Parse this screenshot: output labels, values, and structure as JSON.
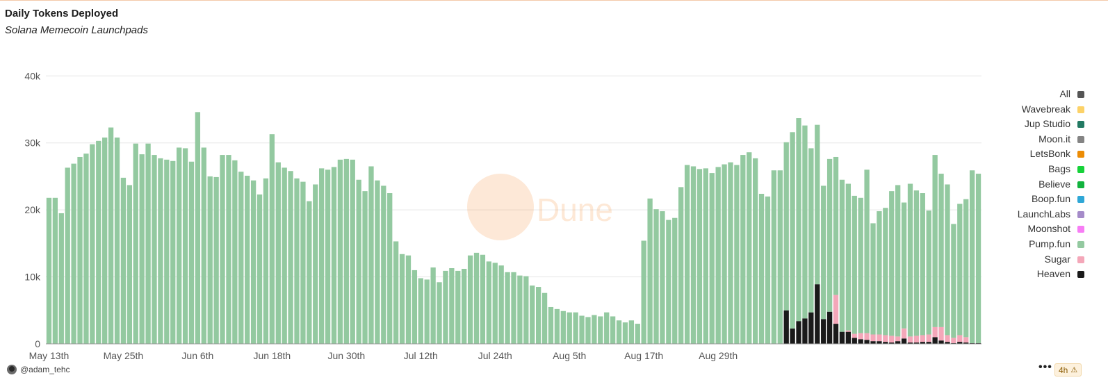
{
  "header": {
    "title": "Daily Tokens Deployed",
    "subtitle": "Solana Memecoin Launchpads"
  },
  "watermark": "Dune",
  "footer": {
    "user": "@adam_tehc",
    "more_label": "•••",
    "refresh_label": "4h",
    "refresh_icon": "warning-icon"
  },
  "colors": {
    "Heaven": "#1a1a1a",
    "Sugar": "#f4a7b9",
    "Pump.fun": "#93c9a0",
    "Moonshot": "#f77df5",
    "LaunchLabs": "#a58bc9",
    "Boop.fun": "#2fa7d6",
    "Believe": "#12b33e",
    "Bags": "#16d239",
    "LetsBonk": "#ec8c05",
    "Moon.it": "#848484",
    "Jup Studio": "#237a63",
    "Wavebreak": "#fcd268",
    "All": "#555555"
  },
  "chart_data": {
    "type": "bar",
    "stacked": true,
    "title": "Daily Tokens Deployed",
    "subtitle": "Solana Memecoin Launchpads",
    "xlabel": "",
    "ylabel": "",
    "ylim": [
      0,
      42000
    ],
    "y_ticks": [
      0,
      10000,
      20000,
      30000,
      40000
    ],
    "y_tick_labels": [
      "0",
      "10k",
      "20k",
      "30k",
      "40k"
    ],
    "x_tick_labels": [
      {
        "date": "2025-05-13",
        "label": "May 13th"
      },
      {
        "date": "2025-05-25",
        "label": "May 25th"
      },
      {
        "date": "2025-06-06",
        "label": "Jun 6th"
      },
      {
        "date": "2025-06-18",
        "label": "Jun 18th"
      },
      {
        "date": "2025-06-30",
        "label": "Jun 30th"
      },
      {
        "date": "2025-07-12",
        "label": "Jul 12th"
      },
      {
        "date": "2025-07-24",
        "label": "Jul 24th"
      },
      {
        "date": "2025-08-05",
        "label": "Aug 5th"
      },
      {
        "date": "2025-08-17",
        "label": "Aug 17th"
      },
      {
        "date": "2025-08-29",
        "label": "Aug 29th"
      }
    ],
    "grid": true,
    "legend_position": "right",
    "legend": [
      "All",
      "Wavebreak",
      "Jup Studio",
      "Moon.it",
      "LetsBonk",
      "Bags",
      "Believe",
      "Boop.fun",
      "LaunchLabs",
      "Moonshot",
      "Pump.fun",
      "Sugar",
      "Heaven"
    ],
    "stack_order": [
      "Heaven",
      "Sugar",
      "Pump.fun",
      "Moonshot",
      "LaunchLabs",
      "Boop.fun",
      "Believe",
      "Bags",
      "LetsBonk",
      "Moon.it",
      "Jup Studio",
      "Wavebreak"
    ],
    "start_date": "2025-05-13",
    "series": [
      {
        "name": "Heaven",
        "values": [
          0,
          0,
          0,
          0,
          0,
          0,
          0,
          0,
          0,
          0,
          0,
          0,
          0,
          0,
          0,
          0,
          0,
          0,
          0,
          0,
          0,
          0,
          0,
          0,
          0,
          0,
          0,
          0,
          0,
          0,
          0,
          0,
          0,
          0,
          0,
          0,
          0,
          0,
          0,
          0,
          0,
          0,
          0,
          0,
          0,
          0,
          0,
          0,
          0,
          0,
          0,
          0,
          0,
          0,
          0,
          0,
          0,
          0,
          0,
          0,
          0,
          0,
          0,
          0,
          0,
          0,
          0,
          0,
          0,
          0,
          0,
          0,
          0,
          0,
          0,
          0,
          0,
          0,
          0,
          0,
          0,
          0,
          0,
          0,
          0,
          0,
          0,
          0,
          0,
          0,
          0,
          0,
          0,
          0,
          0,
          0,
          0,
          0,
          0,
          0,
          0,
          0,
          0,
          0,
          0,
          0,
          0,
          0,
          0,
          0,
          0,
          0,
          0,
          0,
          0,
          0,
          0,
          0,
          0,
          5000,
          2300,
          3400,
          3800,
          4700,
          8900,
          3700,
          4800,
          3000,
          1800,
          1800,
          900,
          700,
          600,
          400,
          400,
          300,
          200,
          400,
          800,
          200,
          200,
          300,
          300,
          1000,
          500,
          300,
          100,
          300,
          200,
          100,
          100,
          100,
          100,
          100,
          100,
          100,
          100,
          100,
          100,
          100,
          100,
          100,
          100,
          100,
          100,
          100,
          100,
          100,
          100,
          100,
          100,
          100,
          100,
          100,
          100,
          100,
          100,
          100,
          100,
          100,
          100,
          100,
          100,
          100,
          100,
          100,
          100,
          100,
          100,
          100,
          100,
          100,
          100,
          100,
          100,
          100,
          100,
          100,
          100,
          100,
          100,
          100,
          100
        ]
      },
      {
        "name": "Sugar",
        "values": [
          0,
          0,
          0,
          0,
          0,
          0,
          0,
          0,
          0,
          0,
          0,
          0,
          0,
          0,
          0,
          0,
          0,
          0,
          0,
          0,
          0,
          0,
          0,
          0,
          0,
          0,
          0,
          0,
          0,
          0,
          0,
          0,
          0,
          0,
          0,
          0,
          0,
          0,
          0,
          0,
          0,
          0,
          0,
          0,
          0,
          0,
          0,
          0,
          0,
          0,
          0,
          0,
          0,
          0,
          0,
          0,
          0,
          0,
          0,
          0,
          0,
          0,
          0,
          0,
          0,
          0,
          0,
          0,
          0,
          0,
          0,
          0,
          0,
          0,
          0,
          0,
          0,
          0,
          0,
          0,
          0,
          0,
          0,
          0,
          0,
          0,
          0,
          0,
          0,
          0,
          0,
          0,
          0,
          0,
          0,
          0,
          0,
          0,
          0,
          0,
          0,
          0,
          0,
          0,
          0,
          0,
          0,
          0,
          0,
          0,
          0,
          0,
          0,
          0,
          0,
          0,
          0,
          0,
          0,
          0,
          0,
          0,
          0,
          0,
          0,
          0,
          0,
          4300,
          0,
          200,
          600,
          900,
          1000,
          1000,
          1000,
          1000,
          1000,
          700,
          1500,
          900,
          1000,
          1000,
          1100,
          1500,
          2000,
          1000,
          800,
          1000,
          800,
          0,
          0,
          0,
          0,
          0,
          0,
          0,
          0,
          0,
          0,
          0,
          0,
          0,
          0,
          0,
          0,
          0,
          0,
          0,
          0,
          0,
          0,
          0,
          0,
          0,
          0,
          0,
          0,
          0,
          0,
          0,
          0,
          0,
          0,
          0,
          0,
          0,
          0,
          0,
          0,
          0,
          0,
          0,
          0,
          0,
          0,
          0,
          0,
          0,
          0,
          0,
          0,
          0,
          0,
          0,
          0,
          0,
          0,
          0,
          0,
          0,
          0,
          0,
          0
        ]
      },
      {
        "name": "Pump.fun",
        "values": [
          21800,
          21800,
          19500,
          26300,
          26900,
          27900,
          28400,
          29800,
          30300,
          30800,
          32300,
          30800,
          24800,
          23700,
          29900,
          28300,
          29900,
          28200,
          27700,
          27500,
          27300,
          29300,
          29200,
          27200,
          34600,
          29300,
          25000,
          24900,
          28200,
          28200,
          27400,
          25700,
          25100,
          24400,
          22300,
          24700,
          31300,
          27100,
          26300,
          25800,
          24700,
          24200,
          21300,
          23800,
          26200,
          26000,
          26400,
          27500,
          27600,
          27500,
          24500,
          22800,
          26500,
          24400,
          23600,
          22500,
          15300,
          13400,
          13200,
          11000,
          9800,
          9600,
          11400,
          9200,
          10900,
          11300,
          10900,
          11200,
          13200,
          13600,
          13300,
          12300,
          12100,
          11700,
          10700,
          10700,
          10200,
          10100,
          8700,
          8500,
          7600,
          5500,
          5200,
          4900,
          4700,
          4700,
          4200,
          4000,
          4300,
          4100,
          4700,
          4100,
          3500,
          3200,
          3500,
          3000,
          15400,
          21700,
          20100,
          19800,
          18500,
          18800,
          23400,
          26700,
          26500,
          26100,
          26200,
          25500,
          26400,
          26800,
          27100,
          26700,
          28200,
          28600,
          27700,
          22400,
          22000,
          25900,
          25900,
          25100,
          29300,
          30300,
          28800,
          24500,
          23800,
          19900,
          22800,
          20600,
          22700,
          21900,
          20600,
          20200,
          24400,
          16600,
          18400,
          19000,
          21600,
          22600,
          18800,
          22800,
          21700,
          21200,
          18500,
          25700,
          22900,
          22500,
          17000,
          19600,
          20600,
          25800,
          25300
        ]
      },
      {
        "name": "Moonshot",
        "values": [
          0,
          0,
          0,
          0,
          0,
          0,
          0,
          0,
          0,
          0,
          0,
          0,
          0,
          0,
          0,
          0,
          0,
          0,
          0,
          0,
          0,
          0,
          0,
          0,
          0,
          0,
          0,
          0,
          0,
          0,
          0,
          0,
          0,
          0,
          0,
          0,
          0,
          0,
          0,
          0,
          0,
          0,
          0,
          0,
          0,
          0,
          0,
          0,
          0,
          0,
          0,
          0,
          0,
          0,
          0,
          0,
          0,
          0,
          0,
          0,
          0,
          0,
          0,
          0,
          0,
          0,
          0,
          0,
          0,
          0,
          0,
          0,
          0,
          0,
          0,
          0,
          0,
          0,
          0,
          0,
          0,
          0,
          0,
          0,
          0,
          0,
          0,
          0,
          0,
          0,
          0,
          0,
          0,
          0,
          0,
          0,
          0,
          0,
          0,
          0,
          0,
          0,
          0,
          0,
          0,
          0,
          0,
          0,
          0,
          0,
          0,
          0,
          0,
          0,
          0,
          0,
          0,
          0,
          0,
          0,
          0,
          0,
          0,
          0,
          0,
          0,
          0,
          0,
          0,
          0,
          0,
          0,
          0,
          0,
          0,
          0,
          0,
          0,
          0,
          0,
          0,
          0,
          0,
          0,
          0,
          0,
          0,
          0,
          0,
          0,
          0,
          0,
          0,
          0,
          0,
          0,
          0,
          0,
          0,
          0,
          0,
          0,
          0,
          0,
          0,
          0,
          0,
          0,
          0,
          0,
          0,
          0,
          0,
          0,
          0,
          0,
          0,
          0,
          0,
          0,
          0,
          0,
          0,
          0,
          0
        ]
      }
    ]
  }
}
